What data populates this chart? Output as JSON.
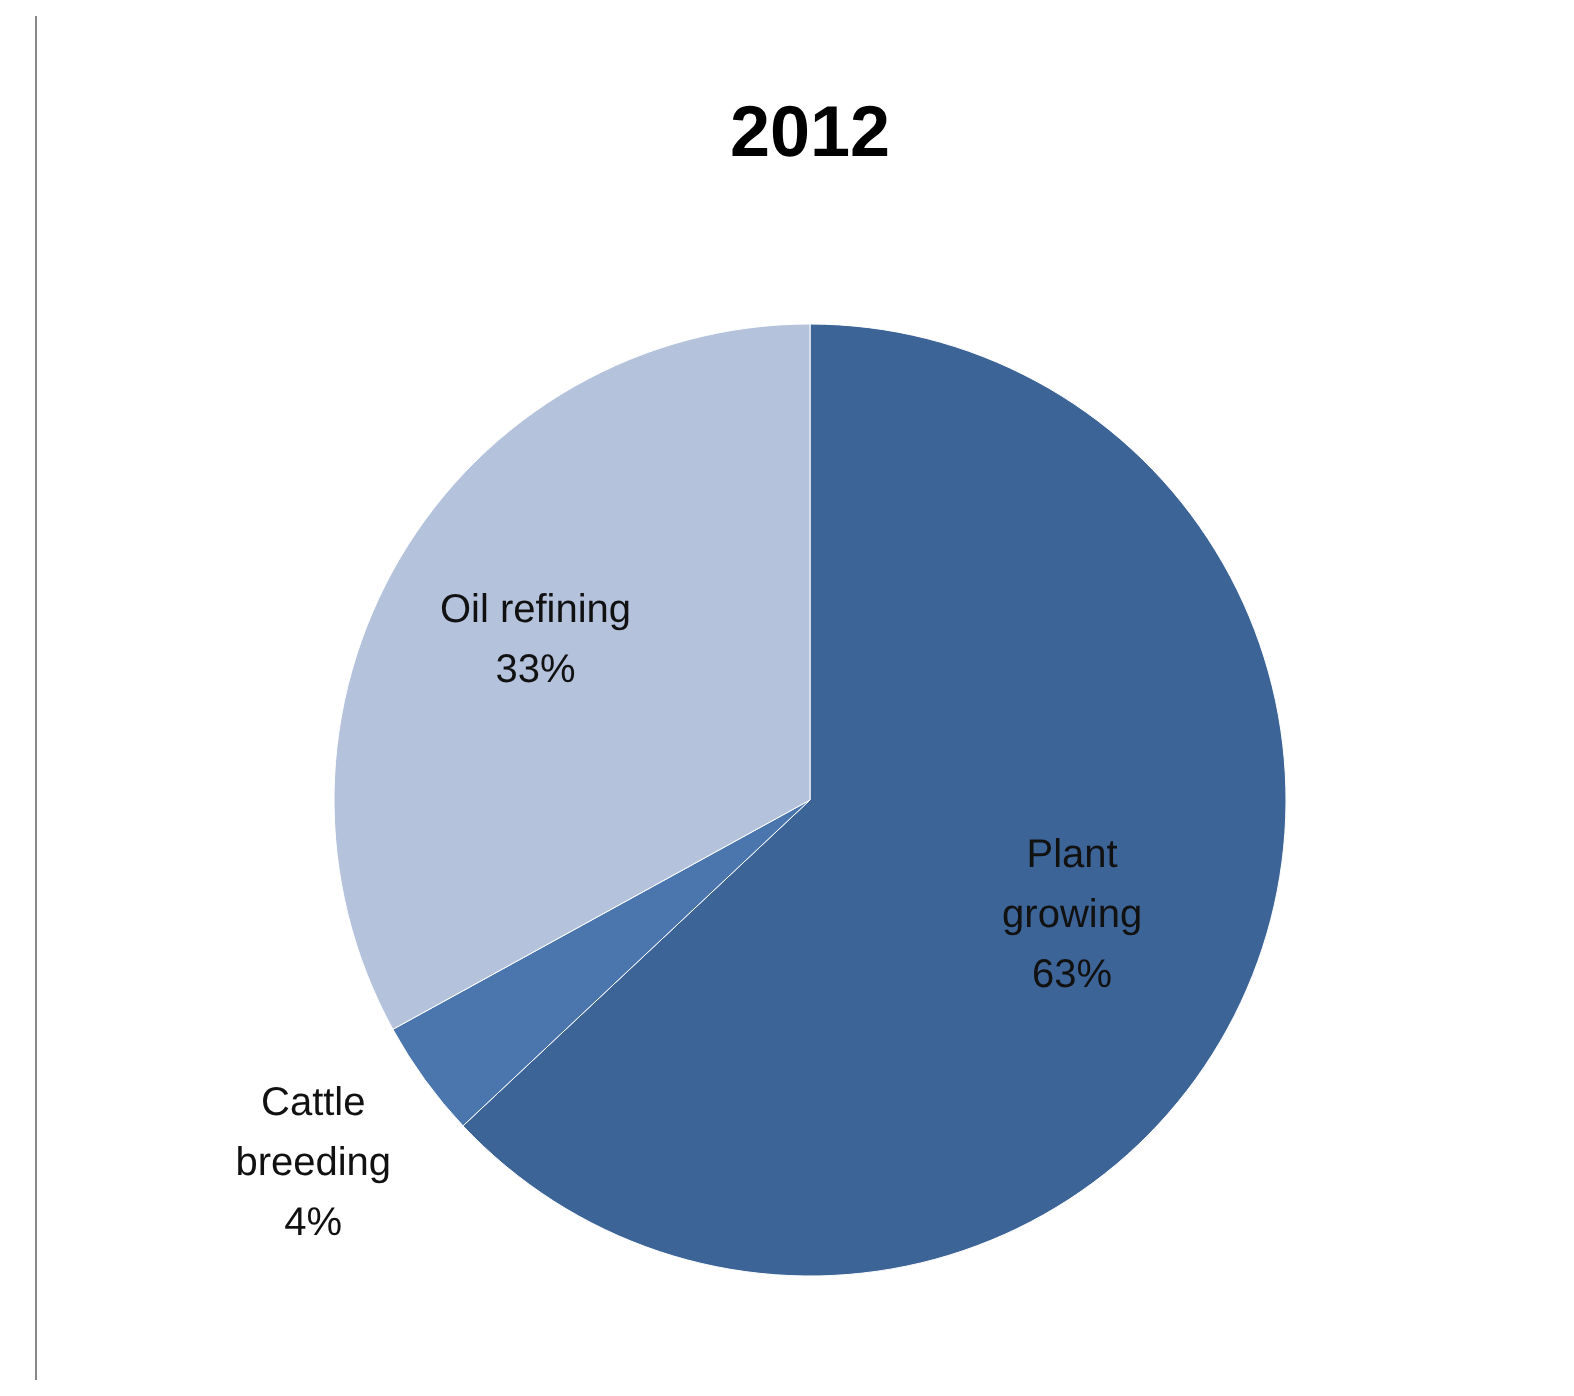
{
  "chart_data": {
    "type": "pie",
    "title": "2012",
    "categories": [
      "Plant growing",
      "Cattle breeding",
      "Oil refining"
    ],
    "values": [
      63,
      4,
      33
    ],
    "colors": [
      "#3d6497",
      "#4a76ad",
      "#b4c2dc"
    ],
    "value_labels": [
      "63%",
      "4%",
      "33%"
    ]
  }
}
